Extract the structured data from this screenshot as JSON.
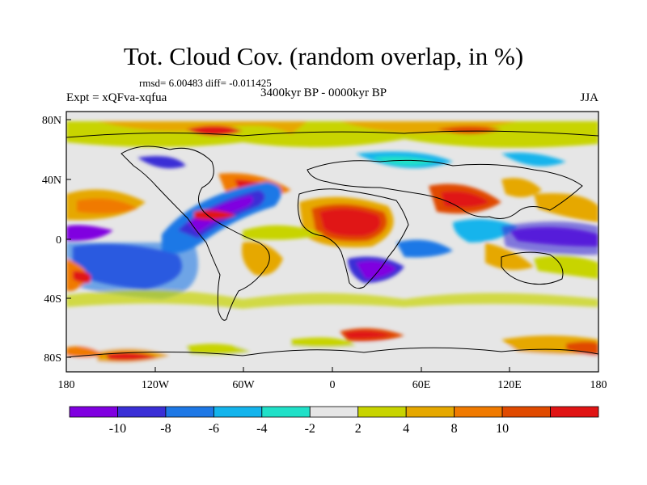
{
  "title": "Tot. Cloud Cov. (random overlap, in %)",
  "stats": "rmsd= 6.00483 diff= -0.011425",
  "experiment": "Expt = xQFva-xqfua",
  "period": "3400kyr BP - 0000kyr BP",
  "season": "JJA",
  "x_ticks": [
    "180",
    "120W",
    "60W",
    "0",
    "60E",
    "120E",
    "180"
  ],
  "y_ticks": [
    "80N",
    "40N",
    "0",
    "40S",
    "80S"
  ],
  "colorbar": {
    "tick_labels": [
      "-10",
      "-8",
      "-6",
      "-4",
      "-2",
      "2",
      "4",
      "8",
      "10"
    ],
    "colors": [
      "#8000e0",
      "#3a2fd6",
      "#1e78e6",
      "#14b4ec",
      "#20e0c8",
      "#e6e6e6",
      "#c8d400",
      "#e6a800",
      "#f07a00",
      "#e04a00",
      "#e01414"
    ]
  },
  "palette": {
    "neg_strong": "#8000e0",
    "neg_med": "#3a2fd6",
    "neg_blue": "#1e78e6",
    "neg_cyan": "#14b4ec",
    "neg_teal": "#20e0c8",
    "neutral": "#e6e6e6",
    "pos_yellow": "#c8d400",
    "pos_orange": "#e6a800",
    "pos_dkorange": "#f07a00",
    "pos_red": "#e01414"
  }
}
